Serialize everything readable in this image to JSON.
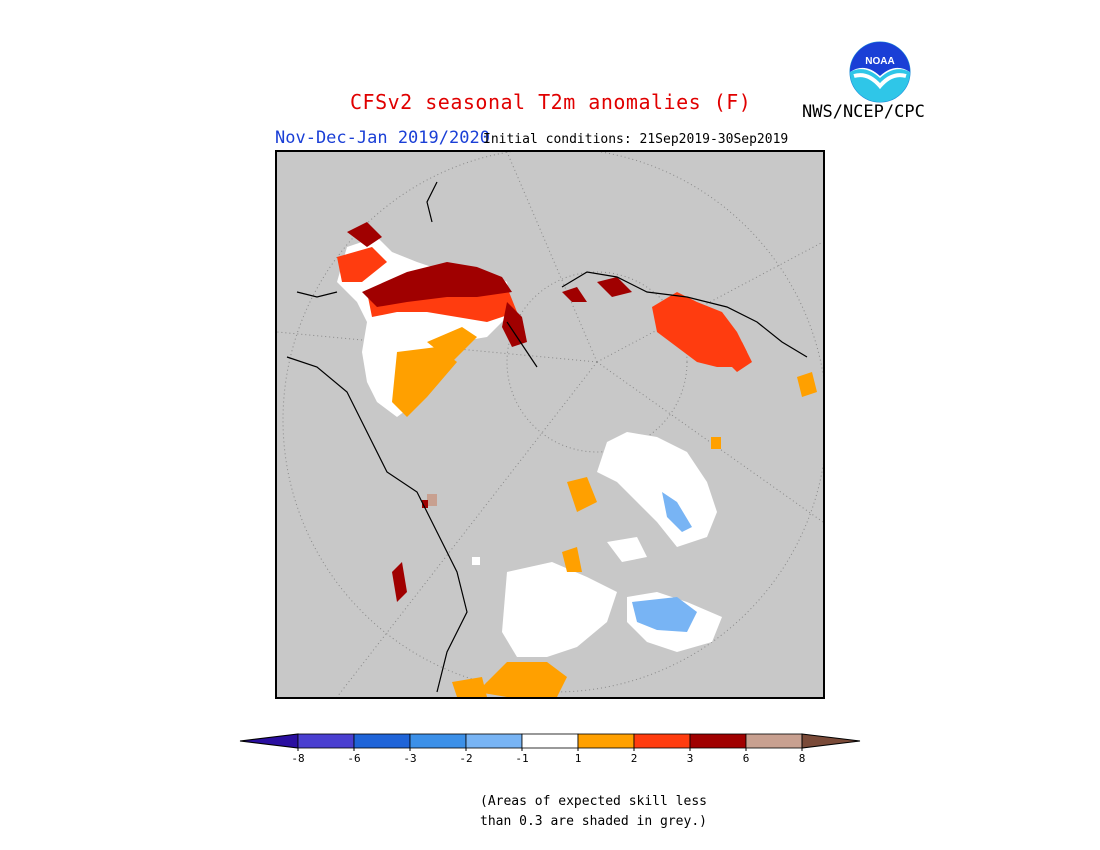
{
  "title": "CFSv2 seasonal T2m anomalies (F)",
  "agency": "NWS/NCEP/CPC",
  "period": "Nov-Dec-Jan 2019/2020",
  "initial_conditions": "Initial conditions: 21Sep2019-30Sep2019",
  "note_line1": "(Areas of expected skill less",
  "note_line2": "than 0.3 are shaded in grey.)",
  "logo_text": "NOAA",
  "legend": {
    "labels": [
      "-8",
      "-6",
      "-3",
      "-2",
      "-1",
      "1",
      "2",
      "3",
      "6",
      "8"
    ],
    "colors": [
      "#2a0fa0",
      "#4a3fd0",
      "#1f64d8",
      "#3c90e8",
      "#78b4f4",
      "#ffffff",
      "#ffa000",
      "#ff3c0f",
      "#a00000",
      "#c8a090",
      "#7a4a38"
    ]
  },
  "colors": {
    "ocean_grey": "#c8c8c8",
    "title_red": "#e00000",
    "period_blue": "#1a3fd6"
  }
}
